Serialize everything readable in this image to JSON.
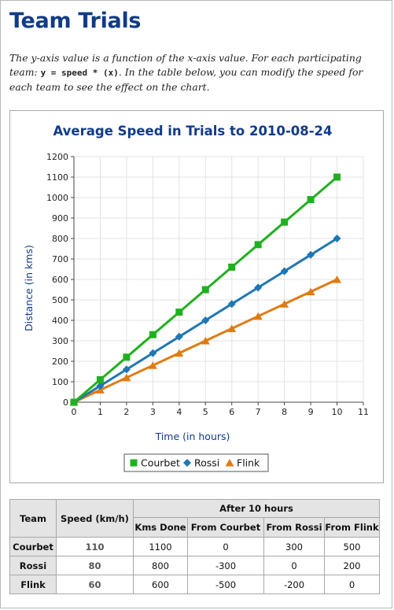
{
  "page": {
    "title": "Team Trials",
    "description": {
      "part1": "The y-axis value is a function of the x-axis value. For each participating team: ",
      "formula": "y = speed * (x)",
      "part2": ". In the table below, you can modify the speed for each team to see the effect on the chart."
    }
  },
  "chart_data": {
    "type": "line",
    "title": "Average Speed in Trials to 2010-08-24",
    "xlabel": "Time (in hours)",
    "ylabel": "Distance (in kms)",
    "xlim": [
      0,
      11
    ],
    "ylim": [
      0,
      1200
    ],
    "xticks": [
      "0",
      "1",
      "2",
      "3",
      "4",
      "5",
      "6",
      "7",
      "8",
      "9",
      "10",
      "11"
    ],
    "yticks": [
      "0",
      "100",
      "200",
      "300",
      "400",
      "500",
      "600",
      "700",
      "800",
      "900",
      "1000",
      "1100",
      "1200"
    ],
    "grid": true,
    "legend_position": "bottom",
    "x": [
      0,
      1,
      2,
      3,
      4,
      5,
      6,
      7,
      8,
      9,
      10
    ],
    "series": [
      {
        "name": "Courbet",
        "color": "#1fb11f",
        "marker": "square",
        "values": [
          0,
          110,
          220,
          330,
          440,
          550,
          660,
          770,
          880,
          990,
          1100
        ]
      },
      {
        "name": "Rossi",
        "color": "#1f77b4",
        "marker": "diamond",
        "values": [
          0,
          80,
          160,
          240,
          320,
          400,
          480,
          560,
          640,
          720,
          800
        ]
      },
      {
        "name": "Flink",
        "color": "#e07b10",
        "marker": "triangle",
        "values": [
          0,
          60,
          120,
          180,
          240,
          300,
          360,
          420,
          480,
          540,
          600
        ]
      }
    ],
    "colors": {
      "title": "#113b86",
      "axis_label": "#113b86",
      "grid": "#e3e3e3"
    }
  },
  "table": {
    "headers": {
      "team": "Team",
      "speed": "Speed (km/h)",
      "after": "After 10 hours",
      "kms_done": "Kms Done",
      "from_courbet": "From Courbet",
      "from_rossi": "From Rossi",
      "from_flink": "From Flink"
    },
    "rows": [
      {
        "team": "Courbet",
        "speed": "110",
        "kms": "1100",
        "fc": "0",
        "fr": "300",
        "ff": "500"
      },
      {
        "team": "Rossi",
        "speed": "80",
        "kms": "800",
        "fc": "-300",
        "fr": "0",
        "ff": "200"
      },
      {
        "team": "Flink",
        "speed": "60",
        "kms": "600",
        "fc": "-500",
        "fr": "-200",
        "ff": "0"
      }
    ]
  }
}
